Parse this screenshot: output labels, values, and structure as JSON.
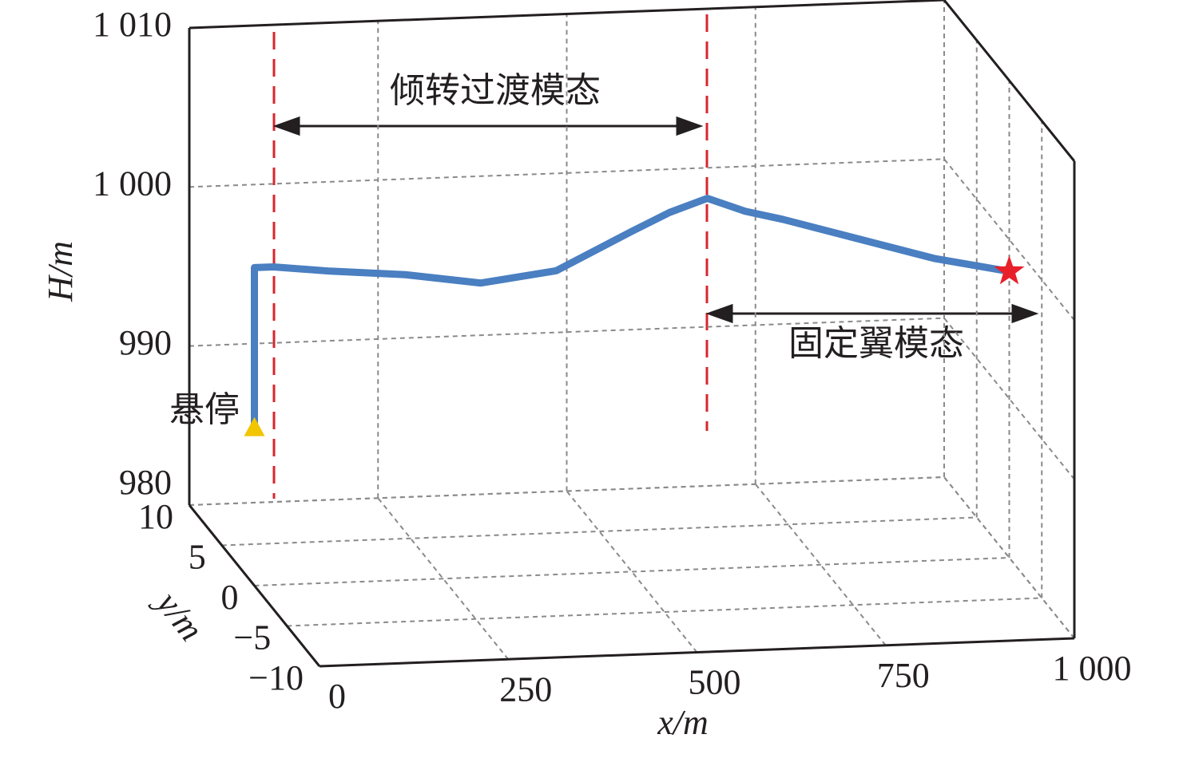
{
  "chart_data": {
    "type": "line3d",
    "x_label": "x/m",
    "y_label": "y/m",
    "z_label": "H/m",
    "xlim": [
      0,
      1000
    ],
    "ylim": [
      -10,
      10
    ],
    "zlim": [
      980,
      1010
    ],
    "xticks": [
      0,
      250,
      500,
      750,
      {
        "value": 1000,
        "label": "1 000"
      }
    ],
    "yticks": [
      {
        "value": -10,
        "label": "−10"
      },
      {
        "value": -5,
        "label": "−5"
      },
      0,
      5,
      10
    ],
    "zticks": [
      980,
      990,
      {
        "value": 1000,
        "label": "1 000"
      },
      {
        "value": 1010,
        "label": "1 010"
      }
    ],
    "grid": true,
    "series": [
      {
        "color": "#4a7fc1",
        "x": [
          0,
          0,
          25,
          100,
          200,
          300,
          400,
          500,
          550,
          600,
          650,
          700,
          800,
          900,
          1000
        ],
        "y": [
          0,
          0,
          0,
          0,
          0,
          0,
          0,
          0,
          0,
          0,
          0,
          0,
          0,
          0,
          0
        ],
        "values": [
          990,
          1000,
          1000,
          999.6,
          999.2,
          998.5,
          999.1,
          1001.4,
          1002.5,
          1003.3,
          1002.4,
          1001.8,
          1000.4,
          999.0,
          998
        ]
      }
    ],
    "start_marker_color": "#f2c500",
    "end_marker_color": "#e8202a",
    "annotations": {
      "transition": "倾转过渡模态",
      "fixed_wing": "固定翼模态",
      "hover": "悬停"
    }
  }
}
